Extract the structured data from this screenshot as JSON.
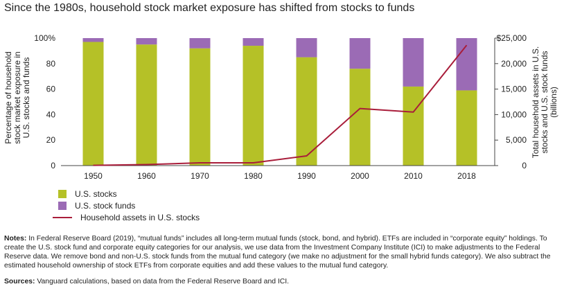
{
  "title": "Since the 1980s, household stock market exposure has shifted from stocks to funds",
  "colors": {
    "stocks": "#b5c127",
    "funds": "#9b6bb5",
    "line": "#a91d3a",
    "axis": "#444444"
  },
  "chart_data": {
    "type": "bar",
    "stacked": true,
    "categories": [
      "1950",
      "1960",
      "1970",
      "1980",
      "1990",
      "2000",
      "2010",
      "2018"
    ],
    "series": [
      {
        "name": "U.S. stocks",
        "axis": "left",
        "values": [
          97,
          95,
          92,
          94,
          85,
          76,
          62,
          59
        ]
      },
      {
        "name": "U.S. stock funds",
        "axis": "left",
        "values": [
          3,
          5,
          8,
          6,
          15,
          24,
          38,
          41
        ]
      },
      {
        "name": "Household assets in U.S. stocks",
        "type": "line",
        "axis": "right",
        "values": [
          50,
          200,
          550,
          550,
          1900,
          11200,
          10500,
          23600
        ]
      }
    ],
    "ylabel": "Percentage of household stock market exposure in U.S. stocks and funds",
    "y2label": "Total household assets in U.S. stocks and U.S. stock funds (billions)",
    "ylim": [
      0,
      100
    ],
    "y2lim": [
      0,
      25000
    ],
    "yticks": [
      "0",
      "20",
      "40",
      "60",
      "80",
      "100%"
    ],
    "y2ticks": [
      "0",
      "5,000",
      "10,000",
      "15,000",
      "20,000",
      "$25,000"
    ],
    "grid": false,
    "legend_position": "bottom-left"
  },
  "notes": {
    "label": "Notes:",
    "text": "In Federal Reserve Board (2019), “mutual funds” includes all long-term mutual funds (stock, bond, and hybrid). ETFs are included in “corporate equity” holdings. To create the U.S. stock fund and corporate equity categories for our analysis, we use data from the Investment Company Institute (ICI) to make adjustments to the Federal Reserve data. We remove bond and non-U.S. stock funds from the mutual fund category (we make no adjustment for the small hybrid funds category). We also subtract the estimated household ownership of stock ETFs from corporate equities and add these values to the mutual fund category."
  },
  "sources": {
    "label": "Sources:",
    "text": "Vanguard calculations, based on data from the Federal Reserve Board and ICI."
  }
}
